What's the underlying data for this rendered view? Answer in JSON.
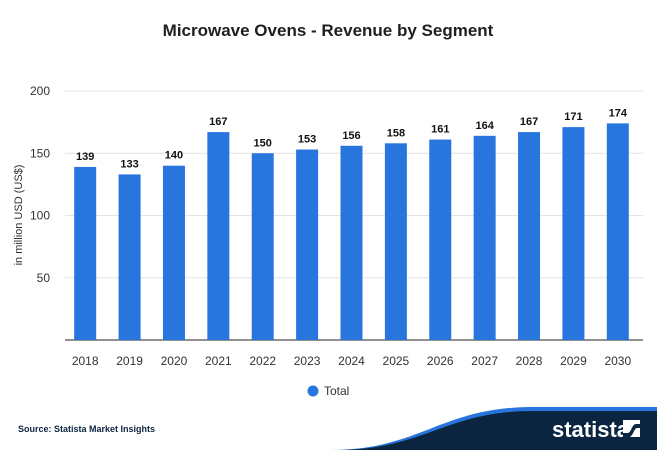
{
  "chart_data": {
    "type": "bar",
    "title": "Microwave Ovens - Revenue by Segment",
    "xlabel": "",
    "ylabel": "in million USD (US$)",
    "ylim": [
      0,
      200
    ],
    "yticks": [
      50,
      100,
      150,
      200
    ],
    "grid": true,
    "legend_position": "bottom-center",
    "categories": [
      "2018",
      "2019",
      "2020",
      "2021",
      "2022",
      "2023",
      "2024",
      "2025",
      "2026",
      "2027",
      "2028",
      "2029",
      "2030"
    ],
    "series": [
      {
        "name": "Total",
        "color": "#2876dd",
        "values": [
          139,
          133,
          140,
          167,
          150,
          153,
          156,
          158,
          161,
          164,
          167,
          171,
          174
        ]
      }
    ]
  },
  "footer": {
    "source": "Source: Statista Market Insights",
    "logo": "statista"
  },
  "colors": {
    "bar": "#2876dd",
    "footer_dark": "#0b2540",
    "footer_accent": "#2876dd"
  }
}
